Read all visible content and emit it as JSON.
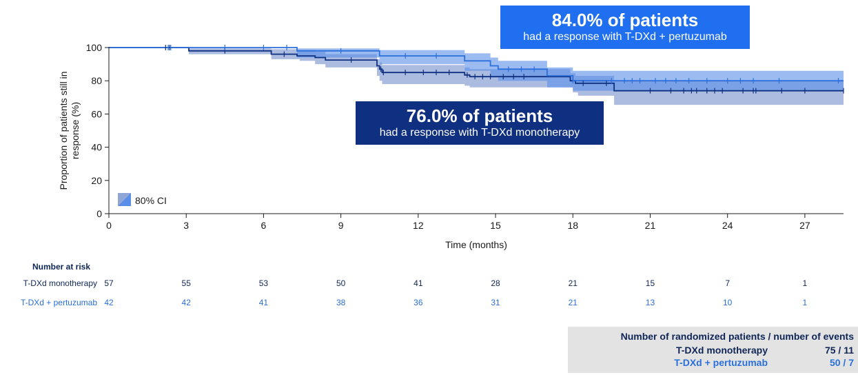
{
  "chart_data": {
    "type": "line",
    "subtype": "kaplan-meier",
    "xlabel": "Time (months)",
    "ylabel": "Proportion of patients still in response (%)",
    "xlim": [
      0,
      28.5
    ],
    "ylim": [
      0,
      100
    ],
    "xticks": [
      0,
      3,
      6,
      9,
      12,
      15,
      18,
      21,
      24,
      27
    ],
    "yticks": [
      0,
      20,
      40,
      60,
      80,
      100
    ],
    "grid": false,
    "legend": {
      "label": "80% CI",
      "placement": "bottom-left"
    },
    "series": [
      {
        "name": "T-DXd monotherapy",
        "color": "#0f2f80",
        "ci_color": "#8fa6d6",
        "steps": [
          [
            0,
            100
          ],
          [
            3.1,
            98
          ],
          [
            6.3,
            96
          ],
          [
            7.3,
            95
          ],
          [
            8,
            94
          ],
          [
            8.4,
            92.5
          ],
          [
            10.4,
            89
          ],
          [
            10.5,
            87
          ],
          [
            10.6,
            85
          ],
          [
            13.8,
            83.5
          ],
          [
            14,
            82.5
          ],
          [
            17.9,
            80
          ],
          [
            18.1,
            78.5
          ],
          [
            19.6,
            74
          ],
          [
            28.5,
            74
          ]
        ],
        "ci_lower": [
          [
            0,
            100
          ],
          [
            3.1,
            96
          ],
          [
            6.3,
            93
          ],
          [
            7.4,
            92
          ],
          [
            8,
            90
          ],
          [
            8.4,
            88
          ],
          [
            10.4,
            83
          ],
          [
            10.5,
            80
          ],
          [
            10.6,
            78
          ],
          [
            13.8,
            77
          ],
          [
            14,
            76
          ],
          [
            18,
            73
          ],
          [
            18.2,
            71
          ],
          [
            19.6,
            65.5
          ],
          [
            28.5,
            65.5
          ]
        ],
        "ci_upper": [
          [
            0,
            100
          ],
          [
            3.1,
            99.5
          ],
          [
            6.3,
            99
          ],
          [
            7.3,
            98.5
          ],
          [
            8,
            97.5
          ],
          [
            8.4,
            96
          ],
          [
            10.4,
            93
          ],
          [
            10.5,
            91
          ],
          [
            10.6,
            89.5
          ],
          [
            13.8,
            88
          ],
          [
            14,
            87
          ],
          [
            17.9,
            84.5
          ],
          [
            18.1,
            83
          ],
          [
            19.6,
            80
          ],
          [
            28.5,
            80
          ]
        ],
        "censor_times": [
          2.2,
          2.35,
          4.5,
          6.8,
          9.4,
          10.55,
          10.65,
          11.5,
          12.2,
          12.7,
          13.2,
          13.9,
          14.2,
          14.5,
          14.8,
          15.3,
          15.7,
          16.1,
          18.4,
          19.3,
          21.0,
          21.8,
          22.3,
          22.6,
          22.8,
          23.2,
          23.5,
          23.8,
          24.6,
          25.0,
          25.1,
          26.1,
          27.0,
          28.5
        ]
      },
      {
        "name": "T-DXd + pertuzumab",
        "color": "#2a6fdb",
        "ci_color": "#5a8de8",
        "steps": [
          [
            0,
            100
          ],
          [
            7.3,
            98
          ],
          [
            10.5,
            95
          ],
          [
            13.8,
            92
          ],
          [
            14.8,
            89
          ],
          [
            15.1,
            87
          ],
          [
            17.0,
            83
          ],
          [
            18.0,
            80
          ],
          [
            28.5,
            80
          ]
        ],
        "ci_lower": [
          [
            0,
            100
          ],
          [
            7.3,
            94
          ],
          [
            10.5,
            90
          ],
          [
            13.8,
            86
          ],
          [
            14.8,
            82
          ],
          [
            15.1,
            80
          ],
          [
            17.0,
            76
          ],
          [
            18.0,
            74
          ],
          [
            28.5,
            74
          ]
        ],
        "ci_upper": [
          [
            0,
            100
          ],
          [
            7.3,
            99.5
          ],
          [
            10.5,
            98.5
          ],
          [
            13.8,
            96.5
          ],
          [
            14.8,
            94
          ],
          [
            15.1,
            92
          ],
          [
            17.0,
            88
          ],
          [
            18.0,
            86
          ],
          [
            28.5,
            86
          ]
        ],
        "censor_times": [
          2.3,
          2.4,
          4.5,
          6.0,
          6.9,
          9.0,
          11.5,
          12.7,
          15.5,
          16.0,
          16.5,
          18.0,
          19.5,
          20.0,
          20.3,
          20.6,
          21.2,
          21.6,
          22.0,
          22.5,
          23.2,
          24.0,
          24.5,
          25.0,
          26.0,
          28.3
        ]
      }
    ]
  },
  "callouts": {
    "pertuzumab": {
      "big": "84.0% of patients",
      "small": "had a response with T-DXd + pertuzumab"
    },
    "mono": {
      "big": "76.0% of patients",
      "small": "had a response with T-DXd monotherapy"
    }
  },
  "number_at_risk": {
    "title": "Number at risk",
    "times": [
      0,
      3,
      6,
      9,
      12,
      15,
      18,
      21,
      24,
      27
    ],
    "rows": [
      {
        "name": "T-DXd monotherapy",
        "values": [
          "57",
          "55",
          "53",
          "50",
          "41",
          "28",
          "21",
          "15",
          "7",
          "1"
        ]
      },
      {
        "name": "T-DXd + pertuzumab",
        "values": [
          "42",
          "42",
          "41",
          "38",
          "36",
          "31",
          "21",
          "13",
          "10",
          "1"
        ]
      }
    ]
  },
  "summary": {
    "header": "Number of randomized patients / number of events",
    "rows": [
      {
        "name": "T-DXd monotherapy",
        "value": "75 / 11"
      },
      {
        "name": "T-DXd + pertuzumab",
        "value": "50 / 7"
      }
    ]
  }
}
